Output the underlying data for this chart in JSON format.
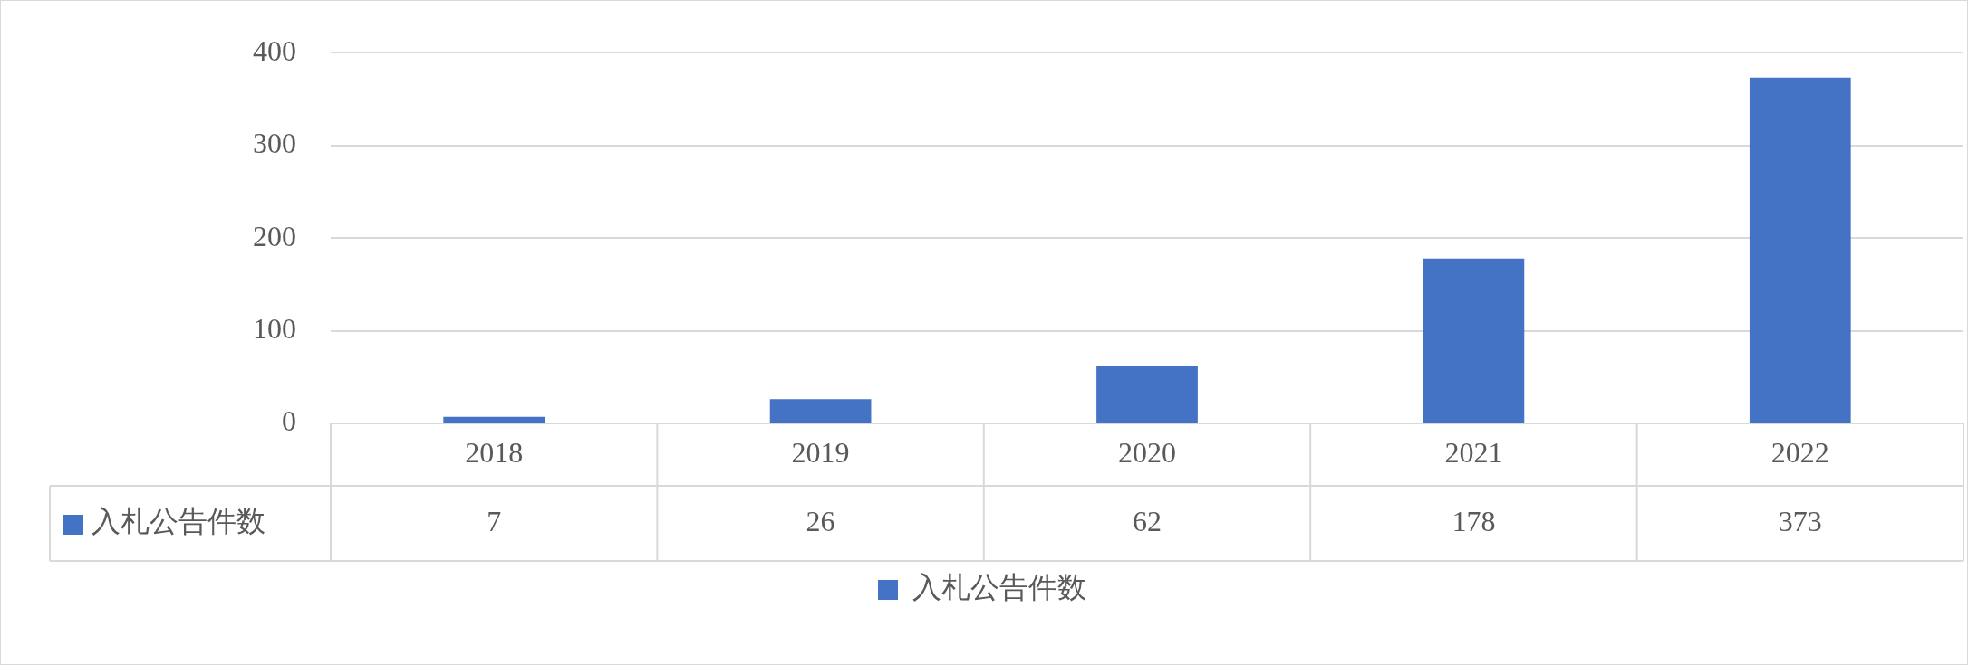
{
  "chart_data": {
    "type": "bar",
    "categories": [
      "2018",
      "2019",
      "2020",
      "2021",
      "2022"
    ],
    "series": [
      {
        "name": "入札公告件数",
        "color": "#4472c4",
        "values": [
          7,
          26,
          62,
          178,
          373
        ]
      }
    ],
    "ylim": [
      0,
      400
    ],
    "yticks": [
      0,
      100,
      200,
      300,
      400
    ],
    "grid": "y",
    "legend": "bottom",
    "data_labels": true
  }
}
